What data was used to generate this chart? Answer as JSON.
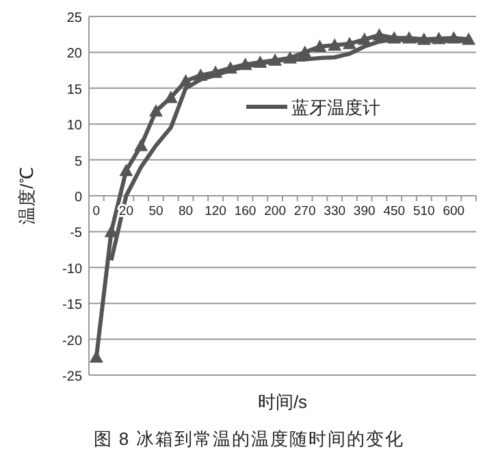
{
  "chart_data": {
    "type": "line",
    "title": "图 8  冰箱到常温的温度随时间的变化",
    "xlabel": "时间/s",
    "ylabel": "温度/℃",
    "categories": [
      "0",
      null,
      "20",
      null,
      "50",
      null,
      "80",
      null,
      "120",
      null,
      "160",
      null,
      "200",
      null,
      "270",
      null,
      "330",
      null,
      "390",
      null,
      "450",
      null,
      "510",
      null,
      "600",
      null
    ],
    "series": [
      {
        "name": "蓝牙温度计",
        "color": "#555555",
        "marker": "none",
        "values": [
          null,
          -9,
          0,
          4,
          7,
          9.5,
          15,
          16.2,
          16.8,
          17.5,
          18,
          18.4,
          18.8,
          19,
          19,
          19.2,
          19.3,
          19.8,
          20.8,
          21.5,
          21.8,
          21.6,
          21.6,
          21.6,
          21.6,
          21.6
        ]
      },
      {
        "color": "#555555",
        "marker": "triangle",
        "values": [
          -22.5,
          -5,
          3.5,
          7,
          11.8,
          13.7,
          16,
          16.8,
          17.2,
          17.8,
          18.3,
          18.6,
          18.9,
          19.2,
          20,
          20.8,
          21,
          21.2,
          21.8,
          22.4,
          22,
          22,
          21.8,
          21.9,
          22,
          21.8
        ]
      }
    ],
    "ylim": [
      -25,
      25
    ],
    "yticks": [
      -25,
      -20,
      -15,
      -10,
      -5,
      0,
      5,
      10,
      15,
      20,
      25
    ],
    "grid": "y",
    "legend": "right",
    "line_style": "solid"
  }
}
